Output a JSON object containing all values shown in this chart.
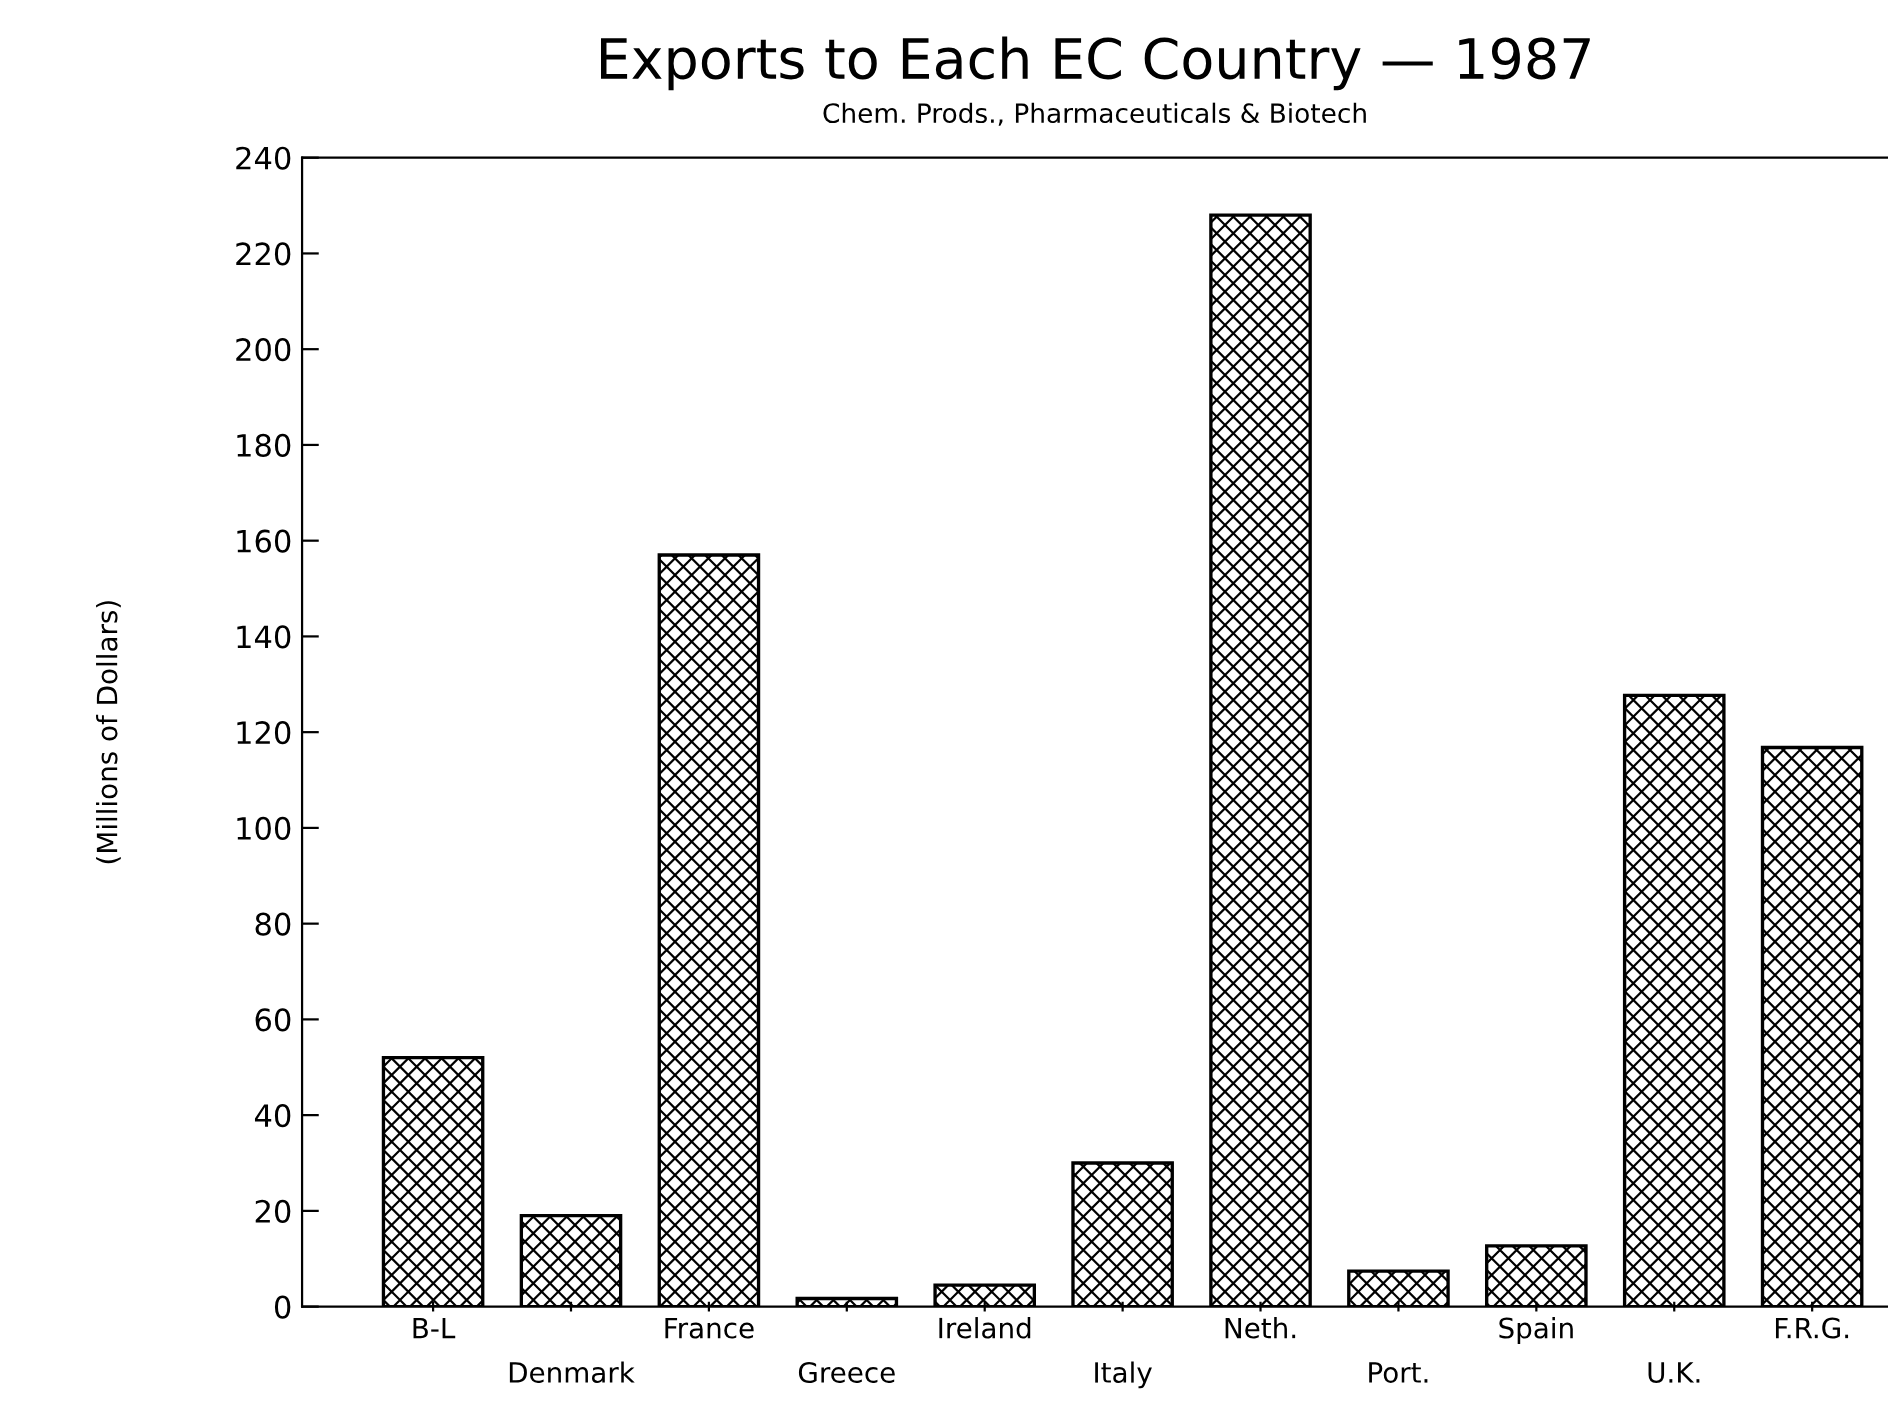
{
  "chart_data": {
    "type": "bar",
    "title": "Exports to Each EC Country — 1987",
    "subtitle": "Chem. Prods., Pharmaceuticals & Biotech",
    "ylabel": "(Millions of Dollars)",
    "categories": [
      "B-L",
      "Denmark",
      "France",
      "Greece",
      "Ireland",
      "Italy",
      "Neth.",
      "Port.",
      "Spain",
      "U.K.",
      "F.R.G."
    ],
    "values": [
      52,
      19,
      157,
      1.7,
      4.5,
      30,
      228,
      7.4,
      12.7,
      127.7,
      116.8
    ],
    "color": "#000000",
    "ylim": [
      0,
      240
    ],
    "yticks": [
      0,
      20,
      40,
      60,
      80,
      100,
      120,
      140,
      160,
      180,
      200,
      220,
      240
    ],
    "grid": false
  }
}
